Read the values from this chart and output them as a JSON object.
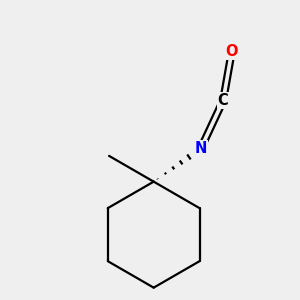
{
  "background_color": "#efefef",
  "bond_color": "#000000",
  "N_color": "#0000ff",
  "O_color": "#ff0000",
  "C_color": "#000000",
  "line_width": 1.6,
  "figsize": [
    3.0,
    3.0
  ],
  "dpi": 100,
  "xlim": [
    -1.8,
    1.8
  ],
  "ylim": [
    -2.2,
    1.8
  ]
}
